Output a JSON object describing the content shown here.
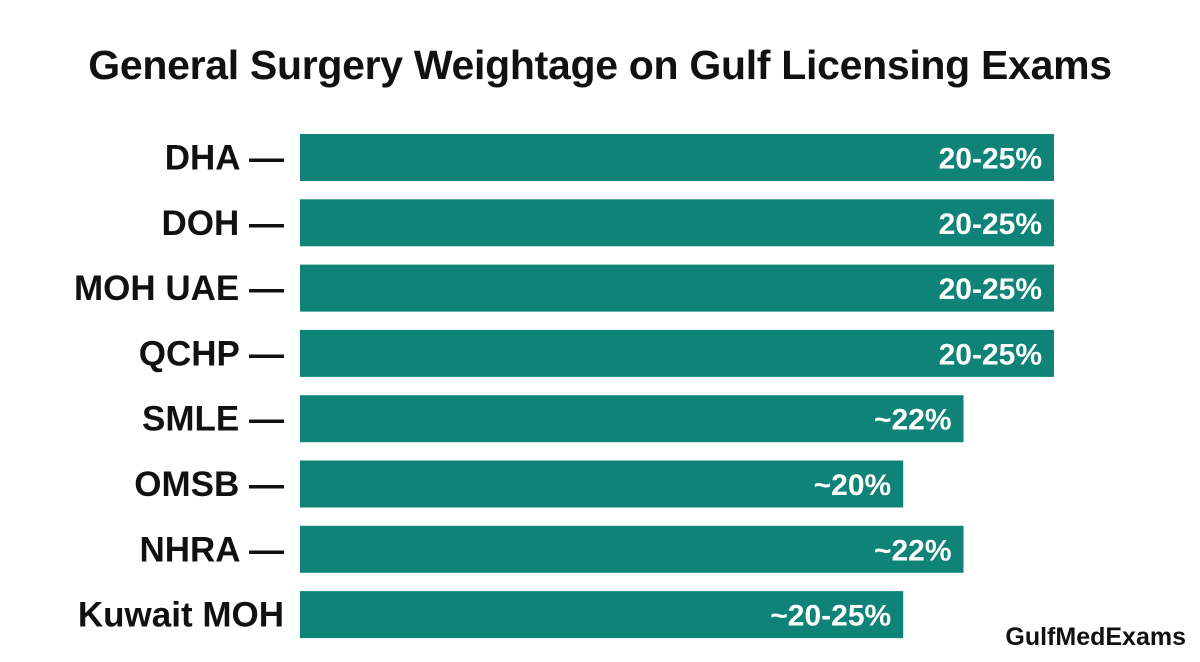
{
  "chart_data": {
    "type": "bar",
    "orientation": "horizontal",
    "title": "General Surgery Weightage on Gulf Licensing Exams",
    "categories": [
      "DHA",
      "DOH",
      "MOH UAE",
      "QCHP",
      "SMLE",
      "OMSB",
      "NHRA",
      "Kuwait MOH"
    ],
    "category_labels": [
      "DHA —",
      "DOH —",
      "MOH UAE —",
      "QCHP —",
      "SMLE —",
      "OMSB —",
      "NHRA —",
      "Kuwait MOH"
    ],
    "values": [
      25,
      25,
      25,
      25,
      22,
      20,
      22,
      20
    ],
    "value_labels": [
      "20-25%",
      "20-25%",
      "20-25%",
      "20-25%",
      "~22%",
      "~20%",
      "~22%",
      "~20-25%"
    ],
    "xlim": [
      0,
      25
    ],
    "grid": false,
    "legend": "none",
    "bar_color": "#0f8378"
  },
  "watermark": "GulfMedExams"
}
